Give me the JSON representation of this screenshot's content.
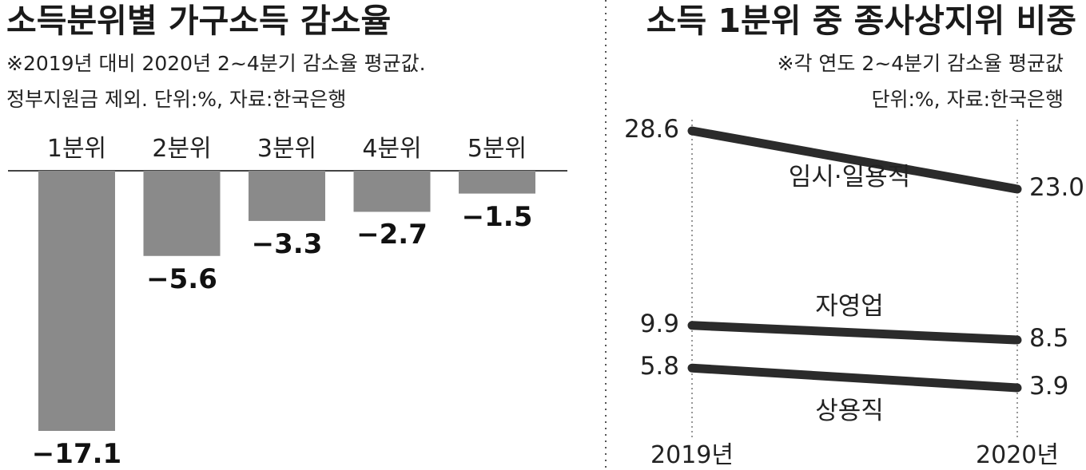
{
  "left_chart": {
    "title": "소득분위별 가구소득 감소율",
    "note_line1": "※2019년 대비 2020년 2~4분기 감소율 평균값.",
    "note_line2": "정부지원금 제외. 단위:%, 자료:한국은행"
  },
  "right_chart": {
    "title": "소득 1분위 중 종사상지위 비중",
    "note_line1": "※각 연도 2~4분기 감소율 평균값",
    "note_line2": "단위:%, 자료:한국은행"
  },
  "colors": {
    "bar": "#8a8a8a",
    "line": "#2b2b2b",
    "divider": "#555555"
  },
  "chart_data": [
    {
      "type": "bar",
      "categories": [
        "1분위",
        "2분위",
        "3분위",
        "4분위",
        "5분위"
      ],
      "values": [
        -17.1,
        -5.6,
        -3.3,
        -2.7,
        -1.5
      ],
      "value_labels": [
        "−17.1",
        "−5.6",
        "−3.3",
        "−2.7",
        "−1.5"
      ],
      "title": "소득분위별 가구소득 감소율",
      "xlabel": "",
      "ylabel": "",
      "ylim": [
        -17.1,
        0
      ],
      "grid": false
    },
    {
      "type": "line",
      "x": [
        "2019년",
        "2020년"
      ],
      "series": [
        {
          "name": "임시·일용직",
          "values": [
            28.6,
            23.0
          ],
          "value_labels": [
            "28.6",
            "23.0"
          ]
        },
        {
          "name": "자영업",
          "values": [
            9.9,
            8.5
          ],
          "value_labels": [
            "9.9",
            "8.5"
          ]
        },
        {
          "name": "상용직",
          "values": [
            5.8,
            3.9
          ],
          "value_labels": [
            "5.8",
            "3.9"
          ]
        }
      ],
      "title": "소득 1분위 중 종사상지위 비중",
      "xlabel": "",
      "ylabel": "",
      "ylim": [
        3.9,
        28.6
      ],
      "grid": false
    }
  ]
}
